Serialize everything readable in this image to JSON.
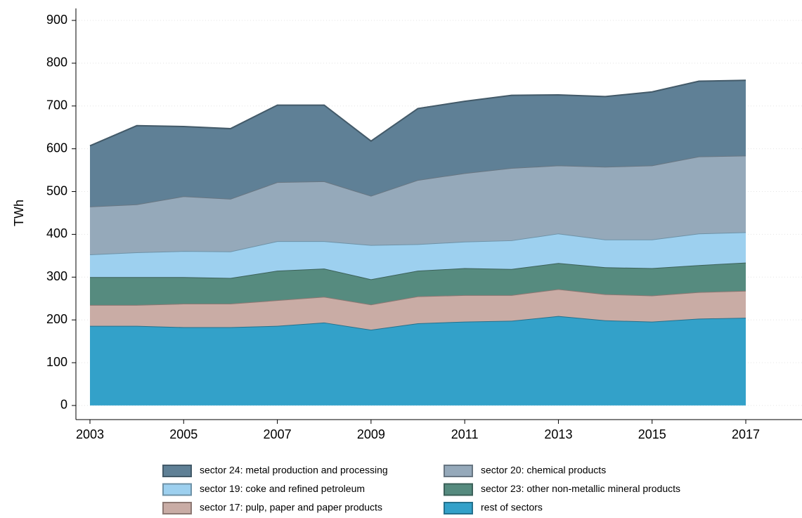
{
  "chart_data": {
    "type": "stacked-area",
    "y_label": "TWh",
    "x": [
      2003,
      2004,
      2005,
      2006,
      2007,
      2008,
      2009,
      2010,
      2011,
      2012,
      2013,
      2014,
      2015,
      2016,
      2017
    ],
    "series": [
      {
        "name": "sector 24: metal production and processing",
        "color": "#5f8096",
        "values": [
          142,
          184,
          163,
          164,
          180,
          178,
          128,
          167,
          168,
          170,
          165,
          164,
          172,
          176,
          176
        ]
      },
      {
        "name": "sector 20: chemical products",
        "color": "#95a9ba",
        "values": [
          112,
          112,
          128,
          123,
          138,
          140,
          115,
          150,
          160,
          169,
          159,
          170,
          173,
          180,
          179
        ]
      },
      {
        "name": "sector 19: coke and refined petroleum",
        "color": "#9dd0ef",
        "values": [
          53,
          58,
          61,
          62,
          69,
          64,
          80,
          62,
          62,
          67,
          69,
          65,
          67,
          74,
          71
        ]
      },
      {
        "name": "sector 23: other non-metallic mineral products",
        "color": "#568b7f",
        "values": [
          65,
          65,
          62,
          60,
          69,
          66,
          59,
          60,
          63,
          61,
          61,
          63,
          64,
          63,
          66
        ]
      },
      {
        "name": "sector 17: pulp, paper and paper products",
        "color": "#c9aca5",
        "values": [
          49,
          49,
          55,
          55,
          60,
          60,
          59,
          63,
          62,
          60,
          63,
          61,
          61,
          62,
          63
        ]
      },
      {
        "name": "rest of sectors",
        "color": "#33a1c9",
        "values": [
          186,
          186,
          183,
          183,
          186,
          194,
          177,
          192,
          196,
          198,
          209,
          199,
          196,
          203,
          205
        ]
      }
    ],
    "xlim": [
      2002.7,
      2018.2
    ],
    "xticks": [
      2003,
      2005,
      2007,
      2009,
      2011,
      2013,
      2015,
      2017
    ],
    "ylim": [
      -33,
      928
    ],
    "yticks": [
      0,
      100,
      200,
      300,
      400,
      500,
      600,
      700,
      800,
      900
    ],
    "grid": true,
    "legend": "bottom"
  }
}
